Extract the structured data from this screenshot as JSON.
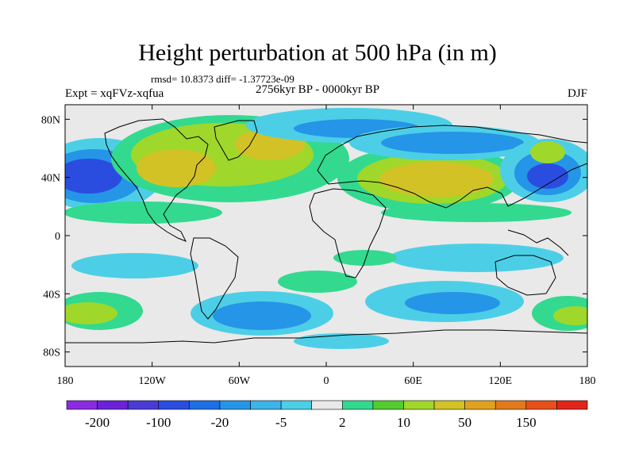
{
  "title": "Height perturbation at 500 hPa (in m)",
  "stats_line": "rmsd= 10.8373 diff= -1.37723e-09",
  "experiment_label": "Expt = xqFVz-xqfua",
  "period_label": "2756kyr BP - 0000kyr BP",
  "season_label": "DJF",
  "y_ticks": [
    {
      "label": "80N",
      "lat": 80
    },
    {
      "label": "40N",
      "lat": 40
    },
    {
      "label": "0",
      "lat": 0
    },
    {
      "label": "40S",
      "lat": -40
    },
    {
      "label": "80S",
      "lat": -80
    }
  ],
  "x_ticks": [
    {
      "label": "180",
      "lon": -180
    },
    {
      "label": "120W",
      "lon": -120
    },
    {
      "label": "60W",
      "lon": -60
    },
    {
      "label": "0",
      "lon": 0
    },
    {
      "label": "60E",
      "lon": 60
    },
    {
      "label": "120E",
      "lon": 120
    },
    {
      "label": "180",
      "lon": 180
    }
  ],
  "colorbar": {
    "colors": [
      "#8a2be2",
      "#6a22d8",
      "#4b3bd6",
      "#2a4de0",
      "#1e6fe6",
      "#2595e8",
      "#3cb3ea",
      "#4ccfe6",
      "#e9e9e9",
      "#33d98f",
      "#52cc2e",
      "#9fd82a",
      "#d2c226",
      "#e0a21e",
      "#e27a1c",
      "#e6501a",
      "#e0261a"
    ],
    "labels": [
      {
        "text": "-200",
        "after_box": 1
      },
      {
        "text": "-100",
        "after_box": 3
      },
      {
        "text": "-20",
        "after_box": 5
      },
      {
        "text": "-5",
        "after_box": 7
      },
      {
        "text": "2",
        "after_box": 9
      },
      {
        "text": "10",
        "after_box": 11
      },
      {
        "text": "50",
        "after_box": 13
      },
      {
        "text": "150",
        "after_box": 15
      }
    ]
  },
  "field_colors": {
    "background": "#e9e9e9",
    "neg_strong": "#2a4de0",
    "neg_mid": "#2595e8",
    "neg_weak": "#4ccfe6",
    "pos_weak": "#33d98f",
    "pos_mid": "#9fd82a",
    "pos_strong": "#d2c226"
  }
}
